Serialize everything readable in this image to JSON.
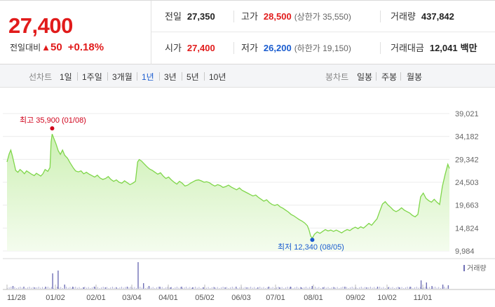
{
  "price": {
    "current": "27,400",
    "change_label": "전일대비",
    "change_icon": "up-triangle-icon",
    "change_value": "50",
    "change_pct": "+0.18%"
  },
  "stats": {
    "prev_close": {
      "label": "전일",
      "value": "27,350"
    },
    "high": {
      "label": "고가",
      "value": "28,500",
      "sub": "(상한가 35,550)"
    },
    "volume": {
      "label": "거래량",
      "value": "437,842"
    },
    "open": {
      "label": "시가",
      "value": "27,400"
    },
    "low": {
      "label": "저가",
      "value": "26,200",
      "sub": "(하한가 19,150)"
    },
    "amount": {
      "label": "거래대금",
      "value": "12,041",
      "unit": "백만"
    }
  },
  "period_bar": {
    "line_label": "선차트",
    "line_periods": [
      "1일",
      "1주일",
      "3개월",
      "1년",
      "3년",
      "5년",
      "10년"
    ],
    "active_period": "1년",
    "candle_label": "봉차트",
    "candle_periods": [
      "일봉",
      "주봉",
      "월봉"
    ]
  },
  "colors": {
    "up": "#e11b1b",
    "down": "#1a5ccf",
    "line": "#7fd64a",
    "fill_top": "#d5f3c0",
    "fill_bottom": "#f4fcee",
    "volume": "#6f6fb5"
  },
  "chart_data": {
    "type": "area",
    "y_ticks": [
      "39,021",
      "34,182",
      "29,342",
      "24,503",
      "19,663",
      "14,824",
      "9,984"
    ],
    "ylim": [
      9984,
      39021
    ],
    "x_ticks": [
      "11/28",
      "01/02",
      "02/01",
      "03/04",
      "04/01",
      "05/02",
      "06/03",
      "07/01",
      "08/01",
      "09/02",
      "10/02",
      "11/01"
    ],
    "high_annotation": {
      "label": "최고",
      "value": "35,900",
      "date": "(01/08)"
    },
    "low_annotation": {
      "label": "최저",
      "value": "12,340",
      "date": "(08/05)"
    },
    "volume_legend": "거래량",
    "series_price": [
      [
        0,
        28800
      ],
      [
        0.4,
        30500
      ],
      [
        0.7,
        31300
      ],
      [
        1,
        30000
      ],
      [
        1.3,
        28500
      ],
      [
        1.6,
        27000
      ],
      [
        2,
        26600
      ],
      [
        2.4,
        27200
      ],
      [
        2.8,
        26800
      ],
      [
        3.2,
        26300
      ],
      [
        3.6,
        26900
      ],
      [
        4,
        26600
      ],
      [
        4.5,
        26200
      ],
      [
        5,
        25900
      ],
      [
        5.4,
        26400
      ],
      [
        5.8,
        26100
      ],
      [
        6.2,
        25800
      ],
      [
        6.6,
        26300
      ],
      [
        7,
        27200
      ],
      [
        7.5,
        26800
      ],
      [
        7.9,
        27600
      ],
      [
        8.1,
        33000
      ],
      [
        8.3,
        34700
      ],
      [
        8.6,
        33800
      ],
      [
        9,
        32600
      ],
      [
        9.4,
        31200
      ],
      [
        9.8,
        30400
      ],
      [
        10.2,
        31300
      ],
      [
        10.6,
        30200
      ],
      [
        11.1,
        29600
      ],
      [
        11.6,
        28600
      ],
      [
        12.2,
        27500
      ],
      [
        12.6,
        26900
      ],
      [
        13.1,
        26700
      ],
      [
        13.6,
        26900
      ],
      [
        14.1,
        26300
      ],
      [
        14.6,
        26600
      ],
      [
        15.1,
        26200
      ],
      [
        15.6,
        25900
      ],
      [
        16.1,
        25600
      ],
      [
        16.6,
        26000
      ],
      [
        17.1,
        25400
      ],
      [
        17.6,
        25100
      ],
      [
        18.1,
        25300
      ],
      [
        18.6,
        25700
      ],
      [
        19.1,
        25100
      ],
      [
        19.6,
        24700
      ],
      [
        20.1,
        25000
      ],
      [
        20.6,
        24500
      ],
      [
        21.1,
        24300
      ],
      [
        21.6,
        24800
      ],
      [
        22.1,
        24400
      ],
      [
        22.6,
        24000
      ],
      [
        23.1,
        24300
      ],
      [
        23.6,
        24700
      ],
      [
        24,
        28800
      ],
      [
        24.3,
        29300
      ],
      [
        24.7,
        29000
      ],
      [
        25.2,
        28400
      ],
      [
        25.7,
        27800
      ],
      [
        26.2,
        27300
      ],
      [
        26.7,
        27000
      ],
      [
        27.2,
        26600
      ],
      [
        27.7,
        26200
      ],
      [
        28.2,
        26500
      ],
      [
        28.7,
        25800
      ],
      [
        29.2,
        25300
      ],
      [
        29.7,
        25600
      ],
      [
        30.2,
        25000
      ],
      [
        30.7,
        24500
      ],
      [
        31.2,
        24100
      ],
      [
        31.7,
        24700
      ],
      [
        32.2,
        24300
      ],
      [
        32.7,
        23700
      ],
      [
        33.2,
        23900
      ],
      [
        33.7,
        24300
      ],
      [
        34.2,
        24600
      ],
      [
        34.7,
        24900
      ],
      [
        35.2,
        25000
      ],
      [
        35.7,
        24800
      ],
      [
        36.2,
        24500
      ],
      [
        36.7,
        24600
      ],
      [
        37.2,
        24400
      ],
      [
        37.7,
        24000
      ],
      [
        38.2,
        23700
      ],
      [
        38.7,
        24000
      ],
      [
        39.2,
        23800
      ],
      [
        39.7,
        23400
      ],
      [
        40.2,
        23600
      ],
      [
        40.7,
        23900
      ],
      [
        41.2,
        23500
      ],
      [
        41.7,
        23200
      ],
      [
        42.2,
        22900
      ],
      [
        42.7,
        23300
      ],
      [
        43.2,
        22800
      ],
      [
        43.7,
        22500
      ],
      [
        44.2,
        22200
      ],
      [
        44.7,
        21900
      ],
      [
        45.2,
        21600
      ],
      [
        45.7,
        21800
      ],
      [
        46.2,
        21300
      ],
      [
        46.7,
        20900
      ],
      [
        47.2,
        20500
      ],
      [
        47.7,
        20800
      ],
      [
        48.2,
        20200
      ],
      [
        48.7,
        19800
      ],
      [
        49.2,
        19600
      ],
      [
        49.7,
        19800
      ],
      [
        50.2,
        19300
      ],
      [
        50.7,
        19000
      ],
      [
        51.2,
        18600
      ],
      [
        51.7,
        18200
      ],
      [
        52.2,
        17700
      ],
      [
        52.7,
        17400
      ],
      [
        53.2,
        17000
      ],
      [
        53.7,
        16600
      ],
      [
        54.2,
        16300
      ],
      [
        54.7,
        15900
      ],
      [
        55.2,
        15300
      ],
      [
        55.5,
        14400
      ],
      [
        55.8,
        13100
      ],
      [
        56.1,
        12700
      ],
      [
        56.5,
        13500
      ],
      [
        57,
        14000
      ],
      [
        57.5,
        13700
      ],
      [
        58,
        14100
      ],
      [
        58.5,
        14500
      ],
      [
        59,
        14200
      ],
      [
        59.5,
        14400
      ],
      [
        60,
        14100
      ],
      [
        60.5,
        14400
      ],
      [
        61,
        14100
      ],
      [
        61.5,
        13800
      ],
      [
        62,
        14200
      ],
      [
        62.5,
        14500
      ],
      [
        63,
        14300
      ],
      [
        63.5,
        14700
      ],
      [
        64,
        15000
      ],
      [
        64.5,
        14700
      ],
      [
        65,
        15100
      ],
      [
        65.5,
        14800
      ],
      [
        66,
        15300
      ],
      [
        66.5,
        15800
      ],
      [
        67,
        15400
      ],
      [
        67.5,
        16100
      ],
      [
        68,
        16800
      ],
      [
        68.5,
        18400
      ],
      [
        69,
        19900
      ],
      [
        69.5,
        20400
      ],
      [
        70,
        19700
      ],
      [
        70.5,
        19200
      ],
      [
        71,
        18600
      ],
      [
        71.5,
        18300
      ],
      [
        72,
        18600
      ],
      [
        72.5,
        19100
      ],
      [
        73,
        18600
      ],
      [
        73.5,
        18300
      ],
      [
        74,
        18000
      ],
      [
        74.5,
        17500
      ],
      [
        75,
        17200
      ],
      [
        75.5,
        17700
      ],
      [
        76,
        21400
      ],
      [
        76.5,
        22200
      ],
      [
        77,
        21100
      ],
      [
        77.5,
        20600
      ],
      [
        78,
        20300
      ],
      [
        78.5,
        20900
      ],
      [
        79,
        20300
      ],
      [
        79.5,
        19800
      ],
      [
        80,
        23600
      ],
      [
        80.5,
        26100
      ],
      [
        81,
        28300
      ],
      [
        81.3,
        27400
      ]
    ],
    "series_volume": [
      [
        1,
        4
      ],
      [
        3,
        3
      ],
      [
        5,
        2
      ],
      [
        7,
        3
      ],
      [
        8.3,
        22
      ],
      [
        9.3,
        26
      ],
      [
        10.5,
        6
      ],
      [
        12,
        3
      ],
      [
        14,
        2
      ],
      [
        16,
        3
      ],
      [
        18,
        2
      ],
      [
        20,
        2
      ],
      [
        22,
        3
      ],
      [
        24,
        38
      ],
      [
        25,
        8
      ],
      [
        26,
        4
      ],
      [
        28,
        3
      ],
      [
        30,
        2
      ],
      [
        32,
        3
      ],
      [
        34,
        2
      ],
      [
        36,
        2
      ],
      [
        38,
        2
      ],
      [
        40,
        2
      ],
      [
        42,
        3
      ],
      [
        44,
        2
      ],
      [
        46,
        2
      ],
      [
        48,
        3
      ],
      [
        50,
        2
      ],
      [
        52,
        3
      ],
      [
        54,
        2
      ],
      [
        56,
        4
      ],
      [
        58,
        2
      ],
      [
        60,
        2
      ],
      [
        62,
        3
      ],
      [
        64,
        2
      ],
      [
        66,
        2
      ],
      [
        68,
        3
      ],
      [
        70,
        2
      ],
      [
        72,
        2
      ],
      [
        74,
        3
      ],
      [
        76,
        12
      ],
      [
        77,
        9
      ],
      [
        78,
        4
      ],
      [
        80,
        6
      ],
      [
        81,
        5
      ]
    ]
  }
}
